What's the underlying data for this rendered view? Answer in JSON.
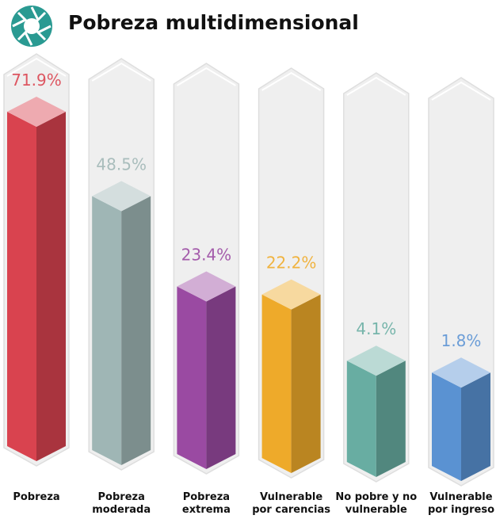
{
  "chart_data": {
    "type": "bar",
    "title": "Pobreza multidimensional",
    "categories": [
      "Pobreza",
      "Pobreza moderada",
      "Pobreza extrema",
      "Vulnerable por carencias",
      "No pobre y no vulnerable",
      "Vulnerable por ingreso"
    ],
    "values": [
      71.9,
      48.5,
      23.4,
      22.2,
      4.1,
      1.8
    ],
    "value_labels": [
      "71.9%",
      "48.5%",
      "23.4%",
      "22.2%",
      "4.1%",
      "1.8%"
    ],
    "colors": [
      "#d9434f",
      "#9fb6b5",
      "#9a4aa2",
      "#eeaa2a",
      "#68ada2",
      "#5a92d2"
    ]
  }
}
